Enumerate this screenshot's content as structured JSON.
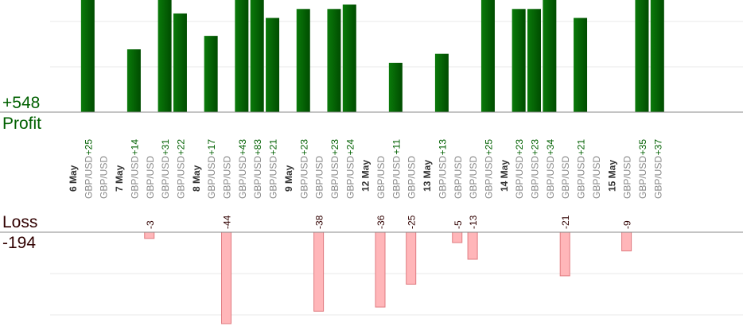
{
  "summary": {
    "profit_total": "+548",
    "profit_label": "Profit",
    "loss_label": "Loss",
    "loss_total": "-194"
  },
  "colors": {
    "profit_bar": "#006400",
    "profit_text": "#006000",
    "loss_bar": "#ffb6b9",
    "loss_border": "#e07b80",
    "loss_text": "#300000",
    "date_text": "#333333",
    "pair_text": "#888888",
    "grid": "#e8e8e8",
    "axis": "#888888"
  },
  "chart_data": {
    "type": "bar",
    "title": "",
    "xlabel": "",
    "ylabel": "",
    "grid": true,
    "legend": "none",
    "profit_ylim": [
      0,
      25
    ],
    "loss_ylim": [
      -44,
      0
    ],
    "columns": [
      {
        "date": "6 May"
      },
      {
        "pair": "GBP/USD",
        "value": 25
      },
      {
        "pair": "GBP/USD"
      },
      {
        "date": "7 May"
      },
      {
        "pair": "GBP/USD",
        "value": 14
      },
      {
        "pair": "GBP/USD",
        "value": -3
      },
      {
        "pair": "GBP/USD",
        "value": 31
      },
      {
        "pair": "GBP/USD",
        "value": 22
      },
      {
        "date": "8 May"
      },
      {
        "pair": "GBP/USD",
        "value": 17
      },
      {
        "pair": "GBP/USD",
        "value": -44
      },
      {
        "pair": "GBP/USD",
        "value": 43
      },
      {
        "pair": "GBP/USD",
        "value": 83
      },
      {
        "pair": "GBP/USD",
        "value": 21
      },
      {
        "date": "9 May"
      },
      {
        "pair": "GBP/USD",
        "value": 23
      },
      {
        "pair": "GBP/USD",
        "value": -38
      },
      {
        "pair": "GBP/USD",
        "value": 23
      },
      {
        "pair": "GBP/USD",
        "value": 24
      },
      {
        "date": "12 May"
      },
      {
        "pair": "GBP/USD",
        "value": -36
      },
      {
        "pair": "GBP/USD",
        "value": 11
      },
      {
        "pair": "GBP/USD",
        "value": -25
      },
      {
        "date": "13 May"
      },
      {
        "pair": "GBP/USD",
        "value": 13
      },
      {
        "pair": "GBP/USD",
        "value": -5
      },
      {
        "pair": "GBP/USD",
        "value": -13
      },
      {
        "pair": "GBP/USD",
        "value": 25
      },
      {
        "date": "14 May"
      },
      {
        "pair": "GBP/USD",
        "value": 23
      },
      {
        "pair": "GBP/USD",
        "value": 23
      },
      {
        "pair": "GBP/USD",
        "value": 34
      },
      {
        "pair": "GBP/USD",
        "value": -21
      },
      {
        "pair": "GBP/USD",
        "value": 21
      },
      {
        "pair": "GBP/USD"
      },
      {
        "date": "15 May"
      },
      {
        "pair": "GBP/USD",
        "value": -9
      },
      {
        "pair": "GBP/USD",
        "value": 35
      },
      {
        "pair": "GBP/USD",
        "value": 37
      }
    ]
  }
}
